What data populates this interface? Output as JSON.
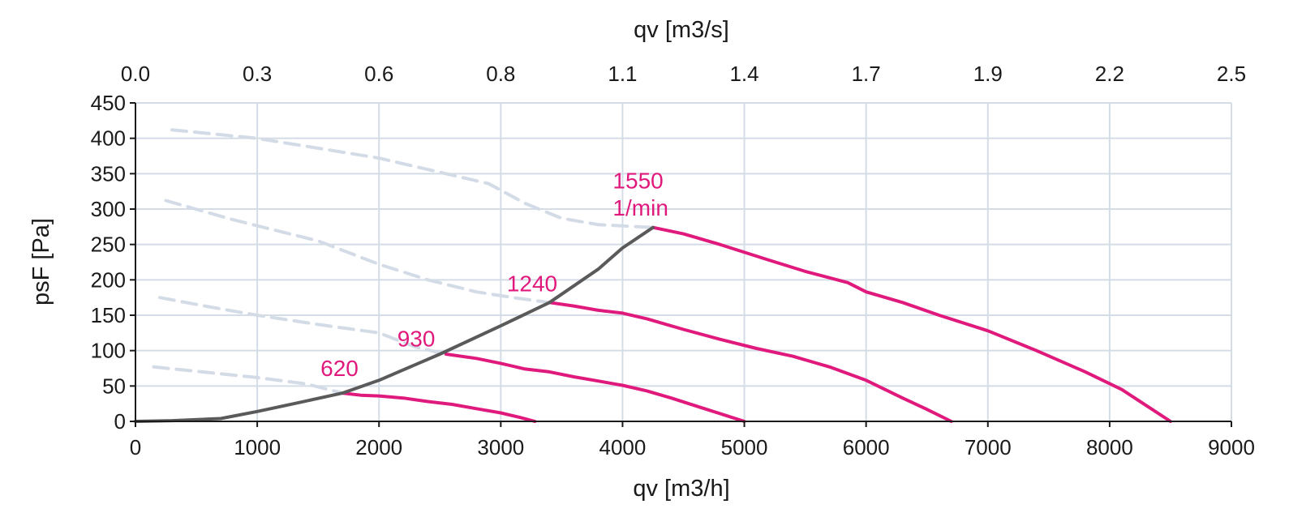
{
  "chart_data": {
    "type": "line",
    "title": "",
    "xlabel": "qv [m3/h]",
    "x2label": "qv [m3/s]",
    "ylabel": "psF [Pa]",
    "xlim": [
      0,
      9000
    ],
    "ylim": [
      0,
      450
    ],
    "x_ticks": [
      0,
      1000,
      2000,
      3000,
      4000,
      5000,
      6000,
      7000,
      8000,
      9000
    ],
    "y_ticks": [
      0,
      50,
      100,
      150,
      200,
      250,
      300,
      350,
      400,
      450
    ],
    "x2_tick_labels": [
      "0.0",
      "0.3",
      "0.6",
      "0.8",
      "1.1",
      "1.4",
      "1.7",
      "1.9",
      "2.2",
      "2.5"
    ],
    "grid": true,
    "colors": {
      "operating": "#e0197d",
      "unstable": "#d3dbe6",
      "system": "#5a5a5a",
      "grid": "#d4dce6",
      "axis": "#1a1a1a"
    },
    "series": [
      {
        "name": "620",
        "role": "operating",
        "x": [
          1700,
          1850,
          2000,
          2200,
          2400,
          2600,
          2800,
          3000,
          3150,
          3280
        ],
        "y": [
          40,
          37,
          36,
          33,
          28,
          24,
          18,
          12,
          6,
          0
        ]
      },
      {
        "name": "930",
        "role": "operating",
        "x": [
          2550,
          2800,
          3000,
          3200,
          3400,
          3600,
          3800,
          4000,
          4200,
          4400,
          4600,
          4800,
          5000
        ],
        "y": [
          95,
          89,
          82,
          74,
          70,
          63,
          57,
          51,
          43,
          33,
          22,
          11,
          0
        ]
      },
      {
        "name": "1240",
        "role": "operating",
        "x": [
          3400,
          3600,
          3800,
          4000,
          4200,
          4500,
          4800,
          5100,
          5400,
          5700,
          6000,
          6300,
          6500,
          6700
        ],
        "y": [
          168,
          163,
          157,
          153,
          145,
          130,
          116,
          103,
          92,
          77,
          58,
          33,
          17,
          0
        ]
      },
      {
        "name": "1550",
        "role": "operating",
        "x": [
          4250,
          4500,
          4800,
          5200,
          5500,
          5850,
          6000,
          6300,
          6600,
          7000,
          7400,
          7800,
          8100,
          8500
        ],
        "y": [
          274,
          265,
          250,
          228,
          212,
          196,
          183,
          168,
          150,
          128,
          100,
          70,
          45,
          0
        ]
      },
      {
        "role": "unstable",
        "x": [
          150,
          600,
          1000,
          1400,
          1700
        ],
        "y": [
          77,
          69,
          62,
          53,
          40
        ]
      },
      {
        "role": "unstable",
        "x": [
          200,
          600,
          1000,
          1500,
          2000,
          2300,
          2550
        ],
        "y": [
          175,
          162,
          150,
          137,
          125,
          105,
          95
        ]
      },
      {
        "role": "unstable",
        "x": [
          250,
          800,
          1500,
          2000,
          2400,
          2800,
          3100,
          3400
        ],
        "y": [
          312,
          285,
          255,
          222,
          200,
          183,
          175,
          168
        ]
      },
      {
        "role": "unstable",
        "x": [
          300,
          1000,
          2000,
          2900,
          3200,
          3500,
          3800,
          4250
        ],
        "y": [
          412,
          400,
          372,
          336,
          308,
          287,
          278,
          274
        ]
      },
      {
        "role": "system",
        "x": [
          0,
          300,
          700,
          1000,
          1300,
          1700,
          2000,
          2500,
          3000,
          3400,
          3800,
          4000,
          4250
        ],
        "y": [
          0,
          1,
          4,
          14,
          25,
          40,
          58,
          95,
          135,
          168,
          215,
          245,
          274
        ]
      }
    ],
    "annotations": [
      {
        "text": "620",
        "x": 1520,
        "y": 64
      },
      {
        "text": "930",
        "x": 2150,
        "y": 106
      },
      {
        "text": "1240",
        "x": 3050,
        "y": 184
      },
      {
        "text": "1550",
        "x": 3920,
        "y": 329
      },
      {
        "text": "1/min",
        "x": 3920,
        "y": 291
      }
    ]
  }
}
